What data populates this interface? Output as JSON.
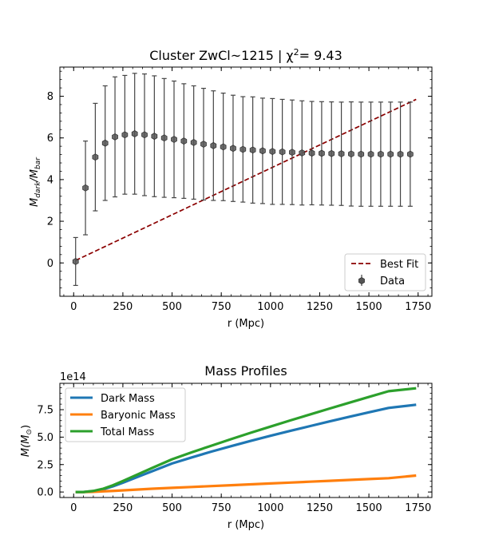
{
  "chart_data": [
    {
      "type": "scatter",
      "title_prefix": "Cluster ZwCl~1215 | χ",
      "title_sup": "2",
      "title_suffix": "= 9.43",
      "xlabel": "r (Mpc)",
      "ylabel_main": "M",
      "ylabel_sub1": "dark",
      "ylabel_slash": "/M",
      "ylabel_sub2": "bar",
      "xlim": [
        -70,
        1820
      ],
      "ylim": [
        -1.6,
        9.4
      ],
      "xticks": [
        0,
        250,
        500,
        750,
        1000,
        1250,
        1500,
        1750
      ],
      "yticks": [
        0,
        2,
        4,
        6,
        8
      ],
      "legend": {
        "position": "lower right",
        "entries": [
          "Best Fit",
          "Data"
        ]
      },
      "colors": {
        "fit": "#8b0000",
        "data": "#555555"
      },
      "series": [
        {
          "name": "Data",
          "x": [
            10,
            60,
            110,
            160,
            210,
            260,
            310,
            360,
            410,
            460,
            510,
            560,
            610,
            660,
            710,
            760,
            810,
            860,
            910,
            960,
            1010,
            1060,
            1110,
            1160,
            1210,
            1260,
            1310,
            1360,
            1410,
            1460,
            1510,
            1560,
            1610,
            1660,
            1710
          ],
          "y": [
            0.07,
            3.6,
            5.08,
            5.75,
            6.05,
            6.15,
            6.2,
            6.15,
            6.08,
            6.0,
            5.93,
            5.85,
            5.78,
            5.7,
            5.63,
            5.57,
            5.5,
            5.45,
            5.42,
            5.38,
            5.35,
            5.33,
            5.31,
            5.28,
            5.27,
            5.26,
            5.25,
            5.24,
            5.23,
            5.22,
            5.22,
            5.22,
            5.22,
            5.22,
            5.22
          ],
          "err": [
            1.15,
            2.25,
            2.58,
            2.75,
            2.88,
            2.85,
            2.9,
            2.92,
            2.9,
            2.85,
            2.8,
            2.75,
            2.72,
            2.68,
            2.63,
            2.58,
            2.55,
            2.53,
            2.55,
            2.53,
            2.54,
            2.52,
            2.51,
            2.5,
            2.48,
            2.48,
            2.48,
            2.48,
            2.5,
            2.5,
            2.5,
            2.5,
            2.5,
            2.5,
            2.5
          ]
        },
        {
          "name": "Best Fit",
          "x": [
            10,
            1740
          ],
          "y": [
            0.12,
            7.85
          ]
        }
      ]
    },
    {
      "type": "line",
      "title": "Mass Profiles",
      "xlabel": "r (Mpc)",
      "ylabel_main": "M(M",
      "ylabel_sub": "⊙",
      "ylabel_close": ")",
      "offset_text": "1e14",
      "xlim": [
        -70,
        1820
      ],
      "ylim": [
        -0.5,
        9.9
      ],
      "xticks": [
        0,
        250,
        500,
        750,
        1000,
        1250,
        1500,
        1750
      ],
      "yticks": [
        0.0,
        2.5,
        5.0,
        7.5
      ],
      "ytick_labels": [
        "0.0",
        "2.5",
        "5.0",
        "7.5"
      ],
      "legend": {
        "position": "upper left",
        "entries": [
          "Dark Mass",
          "Baryonic Mass",
          "Total Mass"
        ]
      },
      "series": [
        {
          "name": "Dark Mass",
          "color": "#1f77b4",
          "x": [
            10,
            50,
            100,
            150,
            200,
            250,
            300,
            350,
            400,
            500,
            600,
            700,
            800,
            900,
            1000,
            1100,
            1200,
            1300,
            1400,
            1500,
            1600,
            1740
          ],
          "y": [
            0.0,
            0.0,
            0.08,
            0.25,
            0.52,
            0.85,
            1.2,
            1.55,
            1.9,
            2.6,
            3.15,
            3.68,
            4.18,
            4.66,
            5.12,
            5.57,
            6.0,
            6.43,
            6.85,
            7.26,
            7.66,
            7.95
          ]
        },
        {
          "name": "Baryonic Mass",
          "color": "#ff7f0e",
          "x": [
            10,
            50,
            100,
            200,
            300,
            400,
            500,
            600,
            700,
            800,
            900,
            1000,
            1100,
            1200,
            1300,
            1400,
            1500,
            1600,
            1740
          ],
          "y": [
            0.0,
            0.0,
            0.02,
            0.1,
            0.2,
            0.3,
            0.38,
            0.46,
            0.54,
            0.62,
            0.7,
            0.78,
            0.86,
            0.94,
            1.02,
            1.1,
            1.18,
            1.26,
            1.5
          ]
        },
        {
          "name": "Total Mass",
          "color": "#2ca02c",
          "x": [
            10,
            50,
            100,
            150,
            200,
            250,
            300,
            350,
            400,
            500,
            600,
            700,
            800,
            900,
            1000,
            1100,
            1200,
            1300,
            1400,
            1500,
            1600,
            1740
          ],
          "y": [
            0.0,
            0.0,
            0.1,
            0.3,
            0.62,
            1.0,
            1.4,
            1.8,
            2.2,
            2.98,
            3.62,
            4.22,
            4.82,
            5.4,
            5.96,
            6.52,
            7.06,
            7.6,
            8.13,
            8.66,
            9.18,
            9.45
          ]
        }
      ]
    }
  ]
}
